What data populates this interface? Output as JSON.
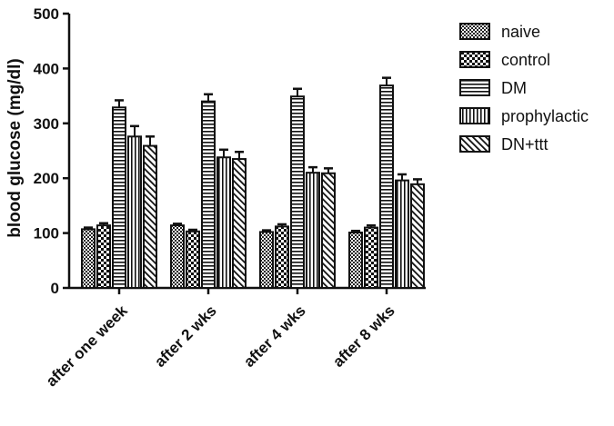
{
  "chart_data": {
    "type": "bar",
    "title": "",
    "xlabel": "",
    "ylabel": "blood glucose (mg/dl)",
    "ylim": [
      0,
      500
    ],
    "yticks": [
      0,
      100,
      200,
      300,
      400,
      500
    ],
    "categories": [
      "after one week",
      "after 2 wks",
      "after 4 wks",
      "after 8 wks"
    ],
    "legend_position": "right",
    "grid": false,
    "series": [
      {
        "name": "naive",
        "pattern": "checker-fine",
        "values": [
          107,
          114,
          102,
          101
        ],
        "errors": [
          3,
          3,
          3,
          3
        ]
      },
      {
        "name": "control",
        "pattern": "checker-coarse",
        "values": [
          114,
          103,
          112,
          110
        ],
        "errors": [
          4,
          3,
          4,
          4
        ]
      },
      {
        "name": "DM",
        "pattern": "horizontal-lines",
        "values": [
          329,
          340,
          349,
          369
        ],
        "errors": [
          13,
          13,
          14,
          14
        ]
      },
      {
        "name": "prophylactic",
        "pattern": "vertical-lines",
        "values": [
          276,
          238,
          210,
          196
        ],
        "errors": [
          19,
          14,
          10,
          11
        ]
      },
      {
        "name": "DN+ttt",
        "pattern": "diagonal-lines",
        "values": [
          259,
          235,
          209,
          189
        ],
        "errors": [
          17,
          13,
          9,
          9
        ]
      }
    ]
  }
}
